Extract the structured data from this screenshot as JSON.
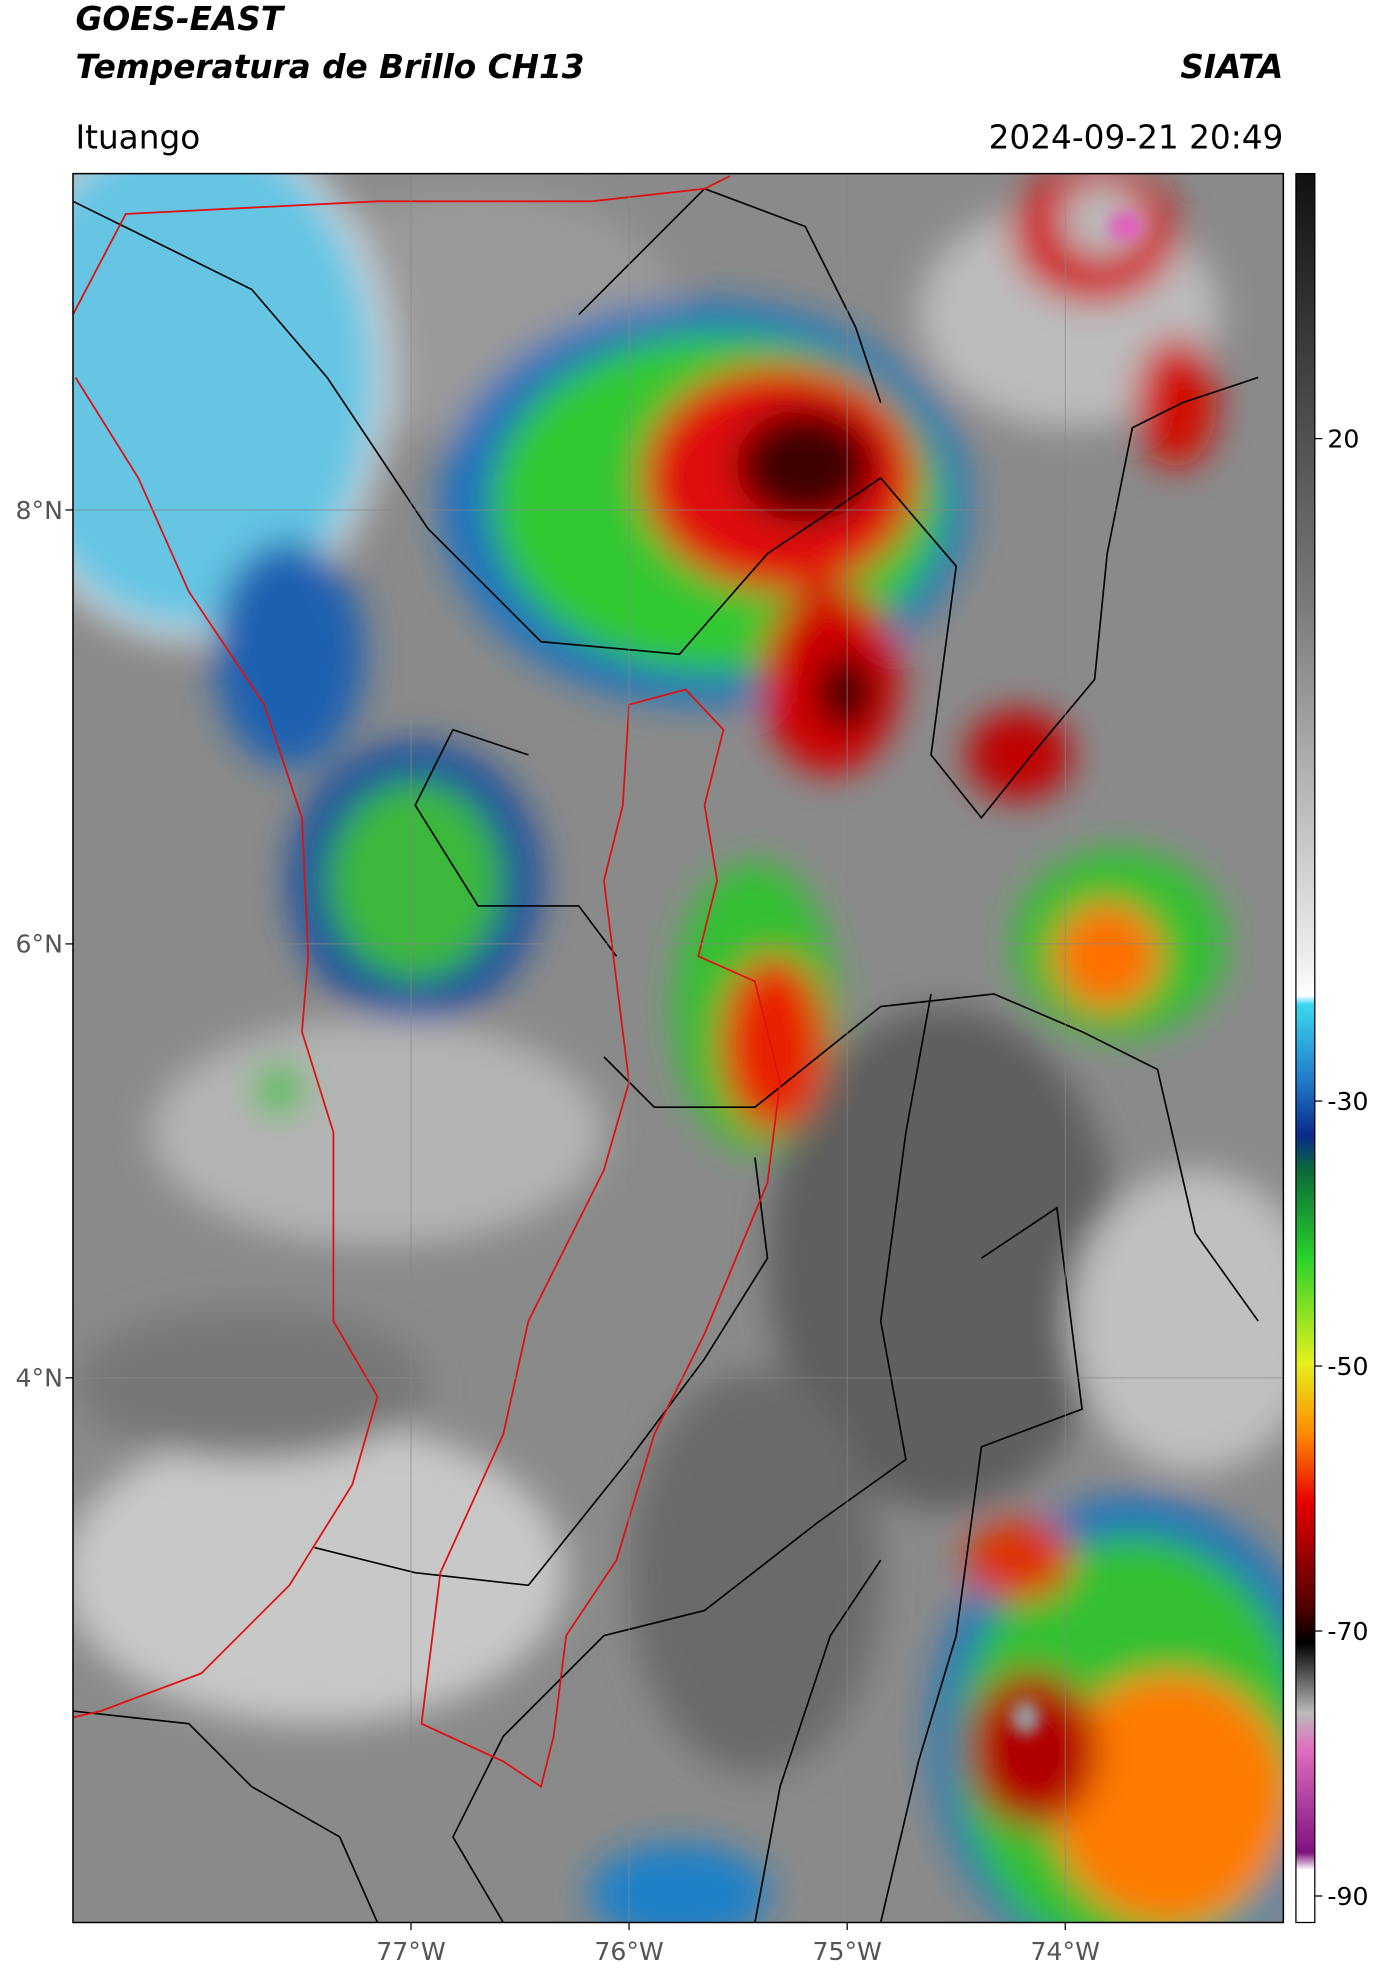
{
  "header": {
    "satellite": "GOES-EAST",
    "product": "Temperatura de Brillo CH13",
    "agency": "SIATA",
    "location": "Ituango",
    "datetime": "2024-09-21 20:49"
  },
  "map": {
    "lat_range": [
      1.49,
      9.55
    ],
    "lon_range": [
      -78.55,
      -73.0
    ],
    "grid": true,
    "lat_ticks": [
      {
        "value": 8,
        "label": "8°N"
      },
      {
        "value": 6,
        "label": "6°N"
      },
      {
        "value": 4,
        "label": "4°N"
      }
    ],
    "lon_ticks": [
      {
        "value": -77,
        "label": "77°W"
      },
      {
        "value": -76,
        "label": "76°W"
      },
      {
        "value": -75,
        "label": "75°W"
      },
      {
        "value": -74,
        "label": "74°W"
      }
    ]
  },
  "colorbar": {
    "range": [
      -92,
      40
    ],
    "ticks": [
      -90,
      -70,
      -50,
      -30,
      20
    ]
  }
}
